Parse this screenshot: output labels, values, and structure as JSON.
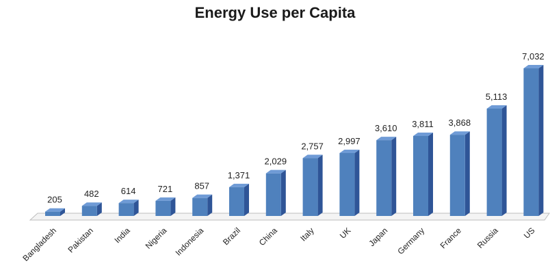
{
  "chart_data": {
    "type": "bar",
    "title": "Energy Use per Capita",
    "categories": [
      "Bangladesh",
      "Pakistan",
      "India",
      "Nigeria",
      "Indonesia",
      "Brazil",
      "China",
      "Italy",
      "UK",
      "Japan",
      "Germany",
      "France",
      "Russia",
      "US"
    ],
    "values": [
      205,
      482,
      614,
      721,
      857,
      1371,
      2029,
      2757,
      2997,
      3610,
      3811,
      3868,
      5113,
      7032
    ],
    "value_labels": [
      "205",
      "482",
      "614",
      "721",
      "857",
      "1,371",
      "2,029",
      "2,757",
      "2,997",
      "3,610",
      "3,811",
      "3,868",
      "5,113",
      "7,032"
    ],
    "xlabel": "",
    "ylabel": "",
    "ylim": [
      0,
      7032
    ],
    "grid": false,
    "legend": "none",
    "bar_color": "#4F81BD",
    "bar_side_color": "#2F5597",
    "bar_top_color": "#6F9BD6"
  }
}
